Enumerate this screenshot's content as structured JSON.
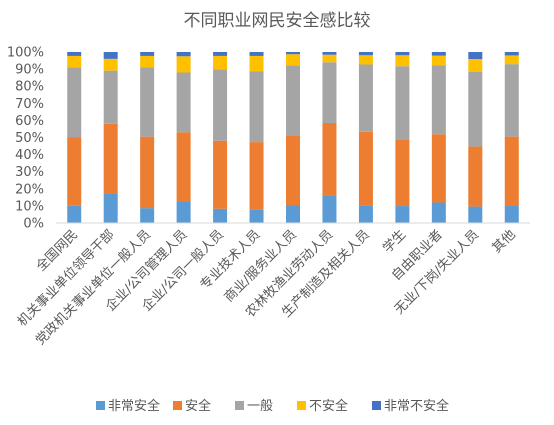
{
  "chart_data": {
    "type": "bar",
    "stacked": true,
    "title": "不同职业网民安全感比较",
    "xlabel": "",
    "ylabel": "",
    "ylim": [
      0,
      100
    ],
    "yticks": [
      "0%",
      "10%",
      "20%",
      "30%",
      "40%",
      "50%",
      "60%",
      "70%",
      "80%",
      "90%",
      "100%"
    ],
    "grid": false,
    "legend": "bottom",
    "categories": [
      "全国网民",
      "机关事业单位领导干部",
      "党政机关事业单位一般人员",
      "企业/公司管理人员",
      "企业/公司一般人员",
      "专业技术人员",
      "商业/服务业人员",
      "农林牧渔业劳动人员",
      "生产制造及相关人员",
      "学生",
      "自由职业者",
      "无业/下岗/失业人员",
      "其他"
    ],
    "series": [
      {
        "name": "非常安全",
        "color": "#5B9BD5",
        "values": [
          10.1,
          17.2,
          8.7,
          12.6,
          8.3,
          8.0,
          10.5,
          16.3,
          10.4,
          9.9,
          12.0,
          9.6,
          10.2
        ]
      },
      {
        "name": "安全",
        "color": "#ED7D31",
        "values": [
          39.9,
          40.8,
          41.8,
          40.4,
          39.8,
          39.3,
          40.8,
          42.2,
          42.9,
          39.1,
          39.9,
          35.1,
          40.3
        ]
      },
      {
        "name": "一般",
        "color": "#A5A5A5",
        "values": [
          40.9,
          31.1,
          40.6,
          35.0,
          41.7,
          41.5,
          40.9,
          35.5,
          39.4,
          42.7,
          40.4,
          43.6,
          42.4
        ]
      },
      {
        "name": "不安全",
        "color": "#FFC000",
        "values": [
          6.8,
          6.9,
          6.6,
          9.5,
          7.9,
          8.9,
          6.5,
          4.4,
          5.4,
          6.4,
          5.6,
          7.6,
          5.1
        ]
      },
      {
        "name": "非常不安全",
        "color": "#4472C4",
        "values": [
          2.3,
          4.0,
          2.3,
          2.5,
          2.3,
          2.3,
          1.3,
          1.6,
          1.9,
          1.9,
          2.1,
          4.1,
          2.0
        ]
      }
    ]
  }
}
